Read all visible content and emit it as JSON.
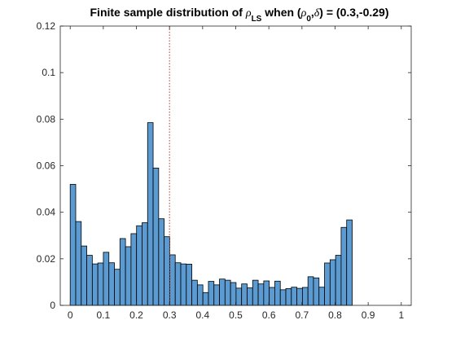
{
  "chart_data": {
    "type": "bar",
    "title": {
      "prefix": "Finite sample distribution of ",
      "rho": "ρ",
      "rho_sub": "LS",
      "middle": " when (",
      "rho0": "ρ",
      "rho0_sub": "0",
      "comma": ",",
      "delta": "δ",
      "suffix": ") = (0.3,-0.29)"
    },
    "xlabel": "",
    "ylabel": "",
    "xlim": [
      -0.03,
      1.03
    ],
    "ylim": [
      0,
      0.12
    ],
    "xticks": [
      0,
      0.1,
      0.2,
      0.3,
      0.4,
      0.5,
      0.6,
      0.7,
      0.8,
      0.9,
      1
    ],
    "xtick_labels": [
      "0",
      "0.1",
      "0.2",
      "0.3",
      "0.4",
      "0.5",
      "0.6",
      "0.7",
      "0.8",
      "0.9",
      "1"
    ],
    "yticks": [
      0,
      0.02,
      0.04,
      0.06,
      0.08,
      0.1,
      0.12
    ],
    "ytick_labels": [
      "0",
      "0.02",
      "0.04",
      "0.06",
      "0.08",
      "0.1",
      "0.12"
    ],
    "bin_start": 0.0,
    "bin_width": 0.0167,
    "values": [
      0.052,
      0.036,
      0.0255,
      0.0215,
      0.0178,
      0.0182,
      0.0228,
      0.0183,
      0.0155,
      0.0287,
      0.0252,
      0.0308,
      0.0342,
      0.0355,
      0.0785,
      0.059,
      0.0372,
      0.0295,
      0.0217,
      0.0183,
      0.0178,
      0.0177,
      0.0108,
      0.0088,
      0.0055,
      0.0103,
      0.0088,
      0.0113,
      0.0108,
      0.0098,
      0.0074,
      0.0092,
      0.0075,
      0.0108,
      0.0092,
      0.0105,
      0.0077,
      0.0104,
      0.0067,
      0.0072,
      0.0078,
      0.0073,
      0.0077,
      0.0123,
      0.0118,
      0.0078,
      0.0182,
      0.0196,
      0.0215,
      0.0335,
      0.0367
    ],
    "reference_line_x": 0.3,
    "colors": {
      "bar_fill": "#5b9bd1",
      "bar_edge": "#000000",
      "reference_line": "#c0392b",
      "axis": "#262626"
    },
    "grid": false,
    "legend": "none"
  }
}
